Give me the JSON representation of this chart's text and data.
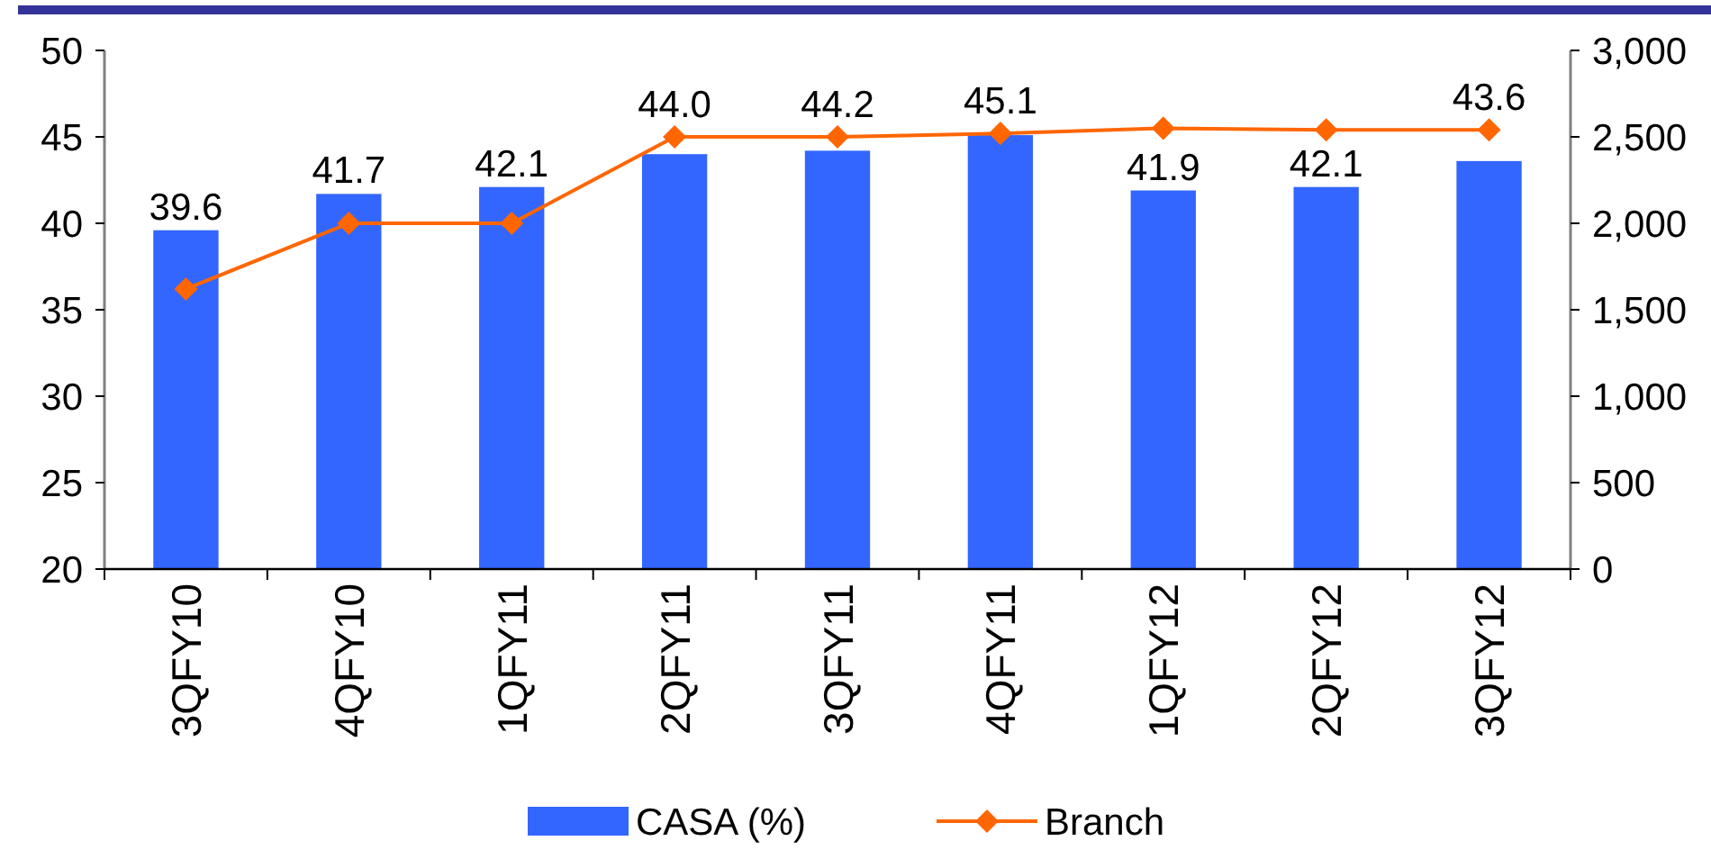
{
  "chart_data": {
    "type": "bar",
    "categories": [
      "3QFY10",
      "4QFY10",
      "1QFY11",
      "2QFY11",
      "3QFY11",
      "4QFY11",
      "1QFY12",
      "2QFY12",
      "3QFY12"
    ],
    "series": [
      {
        "name": "CASA (%)",
        "color": "#3366ff",
        "values": [
          39.6,
          41.7,
          42.1,
          44.0,
          44.2,
          45.1,
          41.9,
          42.1,
          43.6
        ],
        "value_labels": [
          "39.6",
          "41.7",
          "42.1",
          "44.0",
          "44.2",
          "45.1",
          "41.9",
          "42.1",
          "43.6"
        ]
      },
      {
        "name": "Branch",
        "type": "line",
        "axis": "y2",
        "color": "#ff6600",
        "marker": "diamond",
        "values": [
          1620,
          2000,
          2000,
          2500,
          2500,
          2520,
          2550,
          2540,
          2540
        ]
      }
    ],
    "ylim": [
      20,
      50
    ],
    "yticks": [
      20,
      25,
      30,
      35,
      40,
      45,
      50
    ],
    "y2lim": [
      0,
      3000
    ],
    "y2ticks": [
      0,
      500,
      {
        "value": 1000,
        "label": "1,000"
      },
      {
        "value": 1500,
        "label": "1,500"
      },
      {
        "value": 2000,
        "label": "2,000"
      },
      {
        "value": 2500,
        "label": "2,500"
      },
      {
        "value": 3000,
        "label": "3,000"
      }
    ],
    "legend": "bottom"
  }
}
